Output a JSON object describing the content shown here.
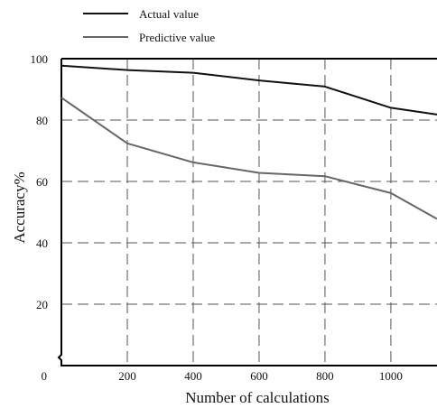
{
  "chart_data": {
    "type": "line",
    "xlabel": "Number of calculations",
    "ylabel": "Accuracy%",
    "xlim": [
      0,
      1140
    ],
    "ylim": [
      0,
      100
    ],
    "xticks": [
      200,
      400,
      600,
      800,
      1000
    ],
    "xtick_labels": [
      "200",
      "400",
      "600",
      "800",
      "1000"
    ],
    "yticks": [
      20,
      40,
      60,
      80,
      100
    ],
    "ytick_labels": [
      "20",
      "40",
      "60",
      "80",
      "100"
    ],
    "origin_label": "0",
    "grid": true,
    "legend_position": "top-left, above plot",
    "series": [
      {
        "name": "Actual value",
        "color": "#111111",
        "x": [
          0,
          200,
          400,
          600,
          800,
          1000,
          1140
        ],
        "y": [
          97.7,
          96.3,
          95.4,
          92.9,
          90.9,
          84.0,
          81.8
        ]
      },
      {
        "name": "Predictive value",
        "color": "#666666",
        "x": [
          0,
          200,
          400,
          600,
          800,
          1000,
          1140
        ],
        "y": [
          87.3,
          72.4,
          66.2,
          62.8,
          61.7,
          56.2,
          47.8
        ]
      }
    ]
  }
}
